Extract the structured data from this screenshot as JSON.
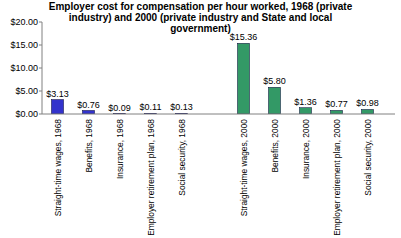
{
  "chart_data": {
    "type": "bar",
    "title": "Employer cost for compensation per hour worked, 1968 (private industry) and 2000 (private industry and State and local government)",
    "categories": [
      "Straight-time wages, 1968",
      "Benefits, 1968",
      "Insurance, 1968",
      "Employer retirement plan, 1968",
      "Social security, 1968",
      null,
      "Straight-time wages, 2000",
      "Benefits, 2000",
      "Insurance, 2000",
      "Employer retirement plan, 2000",
      "Social security, 2000"
    ],
    "values": [
      3.13,
      0.76,
      0.09,
      0.11,
      0.13,
      null,
      15.36,
      5.8,
      1.36,
      0.77,
      0.98
    ],
    "value_labels": [
      "$3.13",
      "$0.76",
      "$0.09",
      "$0.11",
      "$0.13",
      null,
      "$15.36",
      "$5.80",
      "$1.36",
      "$0.77",
      "$0.98"
    ],
    "colors": [
      "#3333cc",
      "#3333cc",
      "#3333cc",
      "#3333cc",
      "#3333cc",
      null,
      "#339966",
      "#339966",
      "#339966",
      "#339966",
      "#339966"
    ],
    "ylim": [
      0,
      20
    ],
    "yticks": [
      {
        "value": 0,
        "label": "$0.00"
      },
      {
        "value": 5,
        "label": "$5.00"
      },
      {
        "value": 10,
        "label": "$10.00"
      },
      {
        "value": 15,
        "label": "$15.00"
      },
      {
        "value": 20,
        "label": "$20.00"
      }
    ],
    "grid": false,
    "data_labels": true
  }
}
